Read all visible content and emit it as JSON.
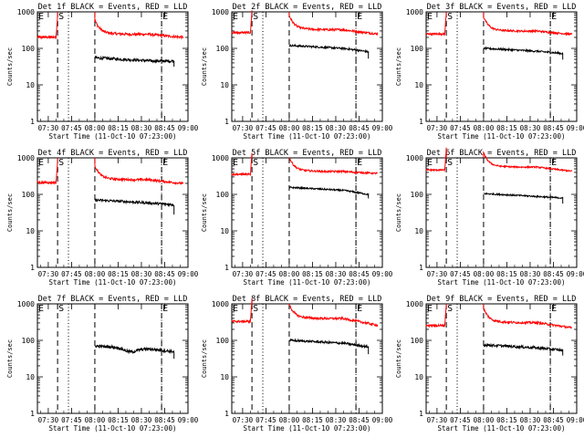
{
  "chart_data": [
    {
      "type": "line",
      "title": "Det 1f BLACK = Events, RED = LLD",
      "xlabel": "Start Time (11-Oct-10 07:23:00)",
      "ylabel": "Counts/sec",
      "events": {
        "max": 55,
        "end_drop": 45,
        "end_min": 50
      },
      "lld": {
        "peak": 270,
        "tail": 190
      },
      "black_noise": 0.08,
      "red_noise": 0.07,
      "black_dip": null
    },
    {
      "type": "line",
      "title": "Det 2f BLACK = Events, RED = LLD",
      "xlabel": "Start Time (11-Oct-10 07:23:00)",
      "ylabel": "Counts/sec",
      "events": {
        "max": 120,
        "end_drop": 75,
        "end_min": 80
      },
      "lld": {
        "peak": 360,
        "tail": 230
      },
      "black_noise": 0.05,
      "red_noise": 0.06,
      "black_dip": null
    },
    {
      "type": "line",
      "title": "Det 3f BLACK = Events, RED = LLD",
      "xlabel": "Start Time (11-Oct-10 07:23:00)",
      "ylabel": "Counts/sec",
      "events": {
        "max": 100,
        "end_drop": 70,
        "end_min": 75
      },
      "lld": {
        "peak": 330,
        "tail": 230
      },
      "black_noise": 0.05,
      "red_noise": 0.05,
      "black_dip": null
    },
    {
      "type": "line",
      "title": "Det 4f BLACK = Events, RED = LLD",
      "xlabel": "Start Time (11-Oct-10 07:23:00)",
      "ylabel": "Counts/sec",
      "events": {
        "max": 70,
        "end_drop": 40,
        "end_min": 55
      },
      "lld": {
        "peak": 280,
        "tail": 185
      },
      "black_noise": 0.07,
      "red_noise": 0.06,
      "black_dip": null
    },
    {
      "type": "line",
      "title": "Det 5f BLACK = Events, RED = LLD",
      "xlabel": "Start Time (11-Oct-10 07:23:00)",
      "ylabel": "Counts/sec",
      "events": {
        "max": 155,
        "end_drop": 110,
        "end_min": 95
      },
      "lld": {
        "peak": 470,
        "tail": 360
      },
      "black_noise": 0.04,
      "red_noise": 0.05,
      "black_dip": null
    },
    {
      "type": "line",
      "title": "Det 6f BLACK = Events, RED = LLD",
      "xlabel": "Start Time (11-Oct-10 07:23:00)",
      "ylabel": "Counts/sec",
      "events": {
        "max": 105,
        "end_drop": 80,
        "end_min": 85
      },
      "lld": {
        "peak": 620,
        "tail": 400
      },
      "black_noise": 0.04,
      "red_noise": 0.04,
      "black_dip": null
    },
    {
      "type": "line",
      "title": "Det 7f BLACK = Events, RED = LLD",
      "xlabel": "Start Time (11-Oct-10 07:23:00)",
      "ylabel": "Counts/sec",
      "events": {
        "max": 70,
        "end_drop": 45,
        "end_min": 50
      },
      "lld": null,
      "black_noise": 0.08,
      "red_noise": 0,
      "black_dip": 0.78
    },
    {
      "type": "line",
      "title": "Det 8f BLACK = Events, RED = LLD",
      "xlabel": "Start Time (11-Oct-10 07:23:00)",
      "ylabel": "Counts/sec",
      "events": {
        "max": 100,
        "end_drop": 60,
        "end_min": 65
      },
      "lld": {
        "peak": 440,
        "tail": 230
      },
      "black_noise": 0.06,
      "red_noise": 0.06,
      "black_dip": null
    },
    {
      "type": "line",
      "title": "Det 9f BLACK = Events, RED = LLD",
      "xlabel": "Start Time (11-Oct-10 07:23:00)",
      "ylabel": "Counts/sec",
      "events": {
        "max": 75,
        "end_drop": 55,
        "end_min": 55
      },
      "lld": {
        "peak": 340,
        "tail": 200
      },
      "black_noise": 0.07,
      "red_noise": 0.06,
      "black_dip": null
    }
  ],
  "axes": {
    "x_tick_labels": [
      "07:30",
      "07:45",
      "08:00",
      "08:15",
      "08:30",
      "08:45",
      "09:00"
    ],
    "y_tick_labels": [
      "1",
      "10",
      "100",
      "1000"
    ],
    "ylim": [
      1,
      1000
    ],
    "y_scale": "log",
    "xlim_hours": [
      7.3833,
      9.0
    ],
    "grid": false
  },
  "markers": {
    "E": "E",
    "S": "S",
    "E_end": "E",
    "dashed_lines": [
      "07:36",
      "08:00",
      "08:43"
    ],
    "dotted_lines": [
      "07:43",
      "08:43"
    ]
  },
  "colors": {
    "events": "#000000",
    "lld": "#ff0000",
    "axes": "#000000",
    "background": "#ffffff"
  }
}
